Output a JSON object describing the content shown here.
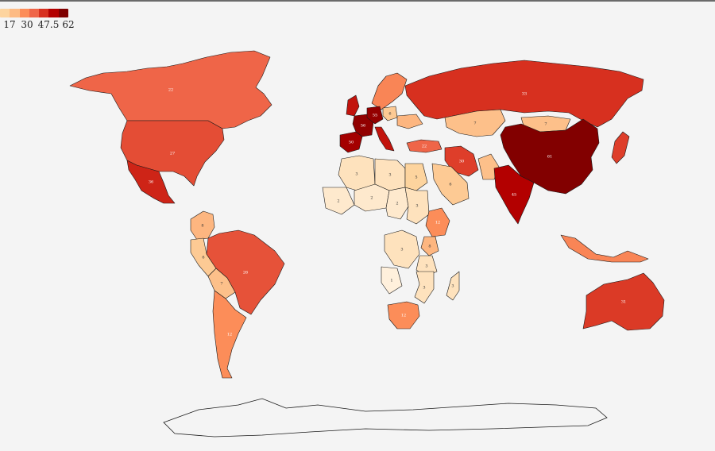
{
  "legend": {
    "ticks": [
      "17",
      "30",
      "47.5",
      "62"
    ],
    "colors": [
      "#fdd49e",
      "#fdbb84",
      "#fc8d59",
      "#ef6548",
      "#d7301f",
      "#b30000",
      "#7f0000"
    ]
  },
  "scale": {
    "min": 0,
    "max": 62,
    "stops": [
      {
        "v": 0,
        "c": "#fff7ec"
      },
      {
        "v": 5,
        "c": "#fdd49e"
      },
      {
        "v": 12,
        "c": "#fc8d59"
      },
      {
        "v": 22,
        "c": "#ef6548"
      },
      {
        "v": 33,
        "c": "#d7301f"
      },
      {
        "v": 45,
        "c": "#b30000"
      },
      {
        "v": 62,
        "c": "#7f0000"
      }
    ]
  },
  "regions": [
    {
      "id": "canada",
      "value": 22,
      "label": "22"
    },
    {
      "id": "usa",
      "value": 27,
      "label": "27"
    },
    {
      "id": "mexico",
      "value": 36,
      "label": "36"
    },
    {
      "id": "brazil",
      "value": 26,
      "label": "26"
    },
    {
      "id": "argentina",
      "value": 12,
      "label": "12"
    },
    {
      "id": "russia",
      "value": 33,
      "label": "33"
    },
    {
      "id": "china",
      "value": 61,
      "label": "61"
    },
    {
      "id": "india",
      "value": 45,
      "label": "45"
    },
    {
      "id": "australia",
      "value": 31,
      "label": "31"
    },
    {
      "id": "iran",
      "value": 30,
      "label": "30"
    },
    {
      "id": "turkey",
      "value": 22,
      "label": "22"
    },
    {
      "id": "spain",
      "value": 50,
      "label": "50"
    },
    {
      "id": "france",
      "value": 56,
      "label": "56"
    },
    {
      "id": "germany",
      "value": 55,
      "label": "55"
    },
    {
      "id": "poland",
      "value": 6,
      "label": "6"
    },
    {
      "id": "ethiopia",
      "value": 12,
      "label": "12"
    },
    {
      "id": "south-africa",
      "value": 12,
      "label": "12"
    },
    {
      "id": "kazakhstan",
      "value": 7,
      "label": "7"
    },
    {
      "id": "mongolia",
      "value": 7,
      "label": "7"
    },
    {
      "id": "algeria",
      "value": 3,
      "label": "3"
    },
    {
      "id": "libya",
      "value": 3,
      "label": "3"
    },
    {
      "id": "egypt",
      "value": 5,
      "label": "5"
    },
    {
      "id": "mali",
      "value": 2,
      "label": "2"
    },
    {
      "id": "niger",
      "value": 2,
      "label": "2"
    },
    {
      "id": "chad",
      "value": 2,
      "label": "2"
    },
    {
      "id": "sudan",
      "value": 3,
      "label": "3"
    },
    {
      "id": "saudi-arabia",
      "value": 6,
      "label": "6"
    },
    {
      "id": "drc",
      "value": 3,
      "label": "3"
    },
    {
      "id": "angola",
      "value": 1,
      "label": "1"
    },
    {
      "id": "tanzania",
      "value": 3,
      "label": "3"
    },
    {
      "id": "mozambique",
      "value": 3,
      "label": "3"
    },
    {
      "id": "madagascar",
      "value": 3,
      "label": "3"
    },
    {
      "id": "peru",
      "value": 6,
      "label": "6"
    },
    {
      "id": "bolivia",
      "value": 7,
      "label": "7"
    },
    {
      "id": "colombia",
      "value": 8,
      "label": "8"
    },
    {
      "id": "kenya",
      "value": 8,
      "label": "8"
    },
    {
      "id": "scandinavia",
      "value": 14,
      "label": ""
    },
    {
      "id": "uk",
      "value": 40,
      "label": ""
    },
    {
      "id": "italy",
      "value": 40,
      "label": ""
    },
    {
      "id": "ukraine",
      "value": 8,
      "label": ""
    },
    {
      "id": "pakistan",
      "value": 7,
      "label": ""
    },
    {
      "id": "indonesia",
      "value": 14,
      "label": ""
    },
    {
      "id": "japan",
      "value": 30,
      "label": ""
    }
  ]
}
